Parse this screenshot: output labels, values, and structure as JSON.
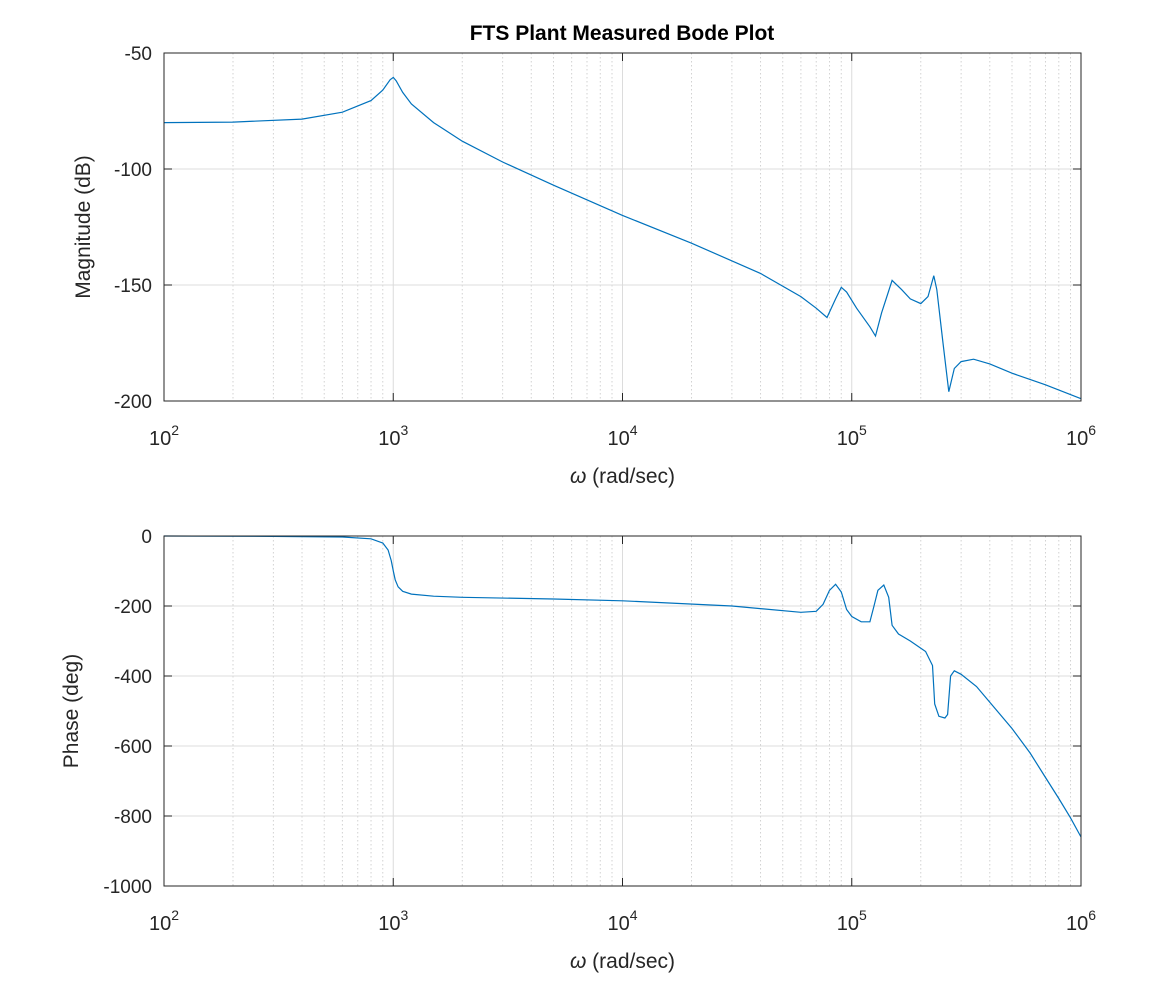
{
  "title": "FTS Plant Measured Bode Plot",
  "colors": {
    "series": "#0072BD",
    "axes": "#262626",
    "grid": "#dcdcdc"
  },
  "chart_data": [
    {
      "type": "line",
      "title": "FTS Plant Measured Bode Plot",
      "xlabel_symbol": "ω",
      "xlabel_text": " (rad/sec)",
      "ylabel": "Magnitude (dB)",
      "xscale": "log",
      "xlim": [
        100,
        1000000
      ],
      "ylim": [
        -200,
        -50
      ],
      "grid": true,
      "xticks": [
        {
          "value": 100,
          "base": "10",
          "exp": "2"
        },
        {
          "value": 1000,
          "base": "10",
          "exp": "3"
        },
        {
          "value": 10000,
          "base": "10",
          "exp": "4"
        },
        {
          "value": 100000,
          "base": "10",
          "exp": "5"
        },
        {
          "value": 1000000,
          "base": "10",
          "exp": "6"
        }
      ],
      "yticks": [
        {
          "value": -50,
          "label": "-50"
        },
        {
          "value": -100,
          "label": "-100"
        },
        {
          "value": -150,
          "label": "-150"
        },
        {
          "value": -200,
          "label": "-200"
        }
      ],
      "x": [
        100,
        200,
        400,
        600,
        800,
        900,
        970,
        1000,
        1030,
        1100,
        1200,
        1500,
        2000,
        3000,
        5000,
        10000,
        20000,
        40000,
        60000,
        70000,
        78000,
        85000,
        90000,
        95000,
        105000,
        120000,
        127000,
        135000,
        150000,
        165000,
        180000,
        200000,
        215000,
        228000,
        235000,
        250000,
        265000,
        280000,
        300000,
        340000,
        400000,
        500000,
        700000,
        1000000
      ],
      "y": [
        -80,
        -79.8,
        -78.5,
        -75.5,
        -70.5,
        -66,
        -61.5,
        -60.5,
        -62,
        -67,
        -72,
        -80,
        -88,
        -97,
        -107,
        -120,
        -132,
        -145,
        -155,
        -160,
        -164,
        -156,
        -151,
        -153,
        -160,
        -168,
        -172,
        -162,
        -148,
        -152,
        -156,
        -158,
        -155,
        -146,
        -152,
        -175,
        -196,
        -186,
        -183,
        -182,
        -184,
        -188,
        -193,
        -199
      ]
    },
    {
      "type": "line",
      "xlabel_symbol": "ω",
      "xlabel_text": " (rad/sec)",
      "ylabel": "Phase (deg)",
      "xscale": "log",
      "xlim": [
        100,
        1000000
      ],
      "ylim": [
        -1000,
        0
      ],
      "grid": true,
      "xticks": [
        {
          "value": 100,
          "base": "10",
          "exp": "2"
        },
        {
          "value": 1000,
          "base": "10",
          "exp": "3"
        },
        {
          "value": 10000,
          "base": "10",
          "exp": "4"
        },
        {
          "value": 100000,
          "base": "10",
          "exp": "5"
        },
        {
          "value": 1000000,
          "base": "10",
          "exp": "6"
        }
      ],
      "yticks": [
        {
          "value": 0,
          "label": "0"
        },
        {
          "value": -200,
          "label": "-200"
        },
        {
          "value": -400,
          "label": "-400"
        },
        {
          "value": -600,
          "label": "-600"
        },
        {
          "value": -800,
          "label": "-800"
        },
        {
          "value": -1000,
          "label": "-1000"
        }
      ],
      "x": [
        100,
        300,
        600,
        800,
        900,
        950,
        980,
        1000,
        1020,
        1050,
        1100,
        1200,
        1500,
        2000,
        5000,
        10000,
        30000,
        60000,
        70000,
        75000,
        80000,
        85000,
        90000,
        95000,
        100000,
        110000,
        120000,
        125000,
        130000,
        138000,
        145000,
        150000,
        160000,
        180000,
        210000,
        225000,
        230000,
        240000,
        255000,
        262000,
        270000,
        280000,
        300000,
        350000,
        400000,
        500000,
        600000,
        700000,
        800000,
        900000,
        1000000
      ],
      "y": [
        0,
        -1,
        -3,
        -8,
        -20,
        -40,
        -70,
        -100,
        -125,
        -145,
        -158,
        -166,
        -172,
        -175,
        -180,
        -185,
        -200,
        -218,
        -215,
        -195,
        -155,
        -138,
        -160,
        -210,
        -230,
        -245,
        -245,
        -200,
        -155,
        -140,
        -175,
        -255,
        -280,
        -300,
        -330,
        -370,
        -480,
        -515,
        -520,
        -510,
        -400,
        -385,
        -395,
        -430,
        -475,
        -550,
        -620,
        -690,
        -750,
        -805,
        -860
      ]
    }
  ]
}
